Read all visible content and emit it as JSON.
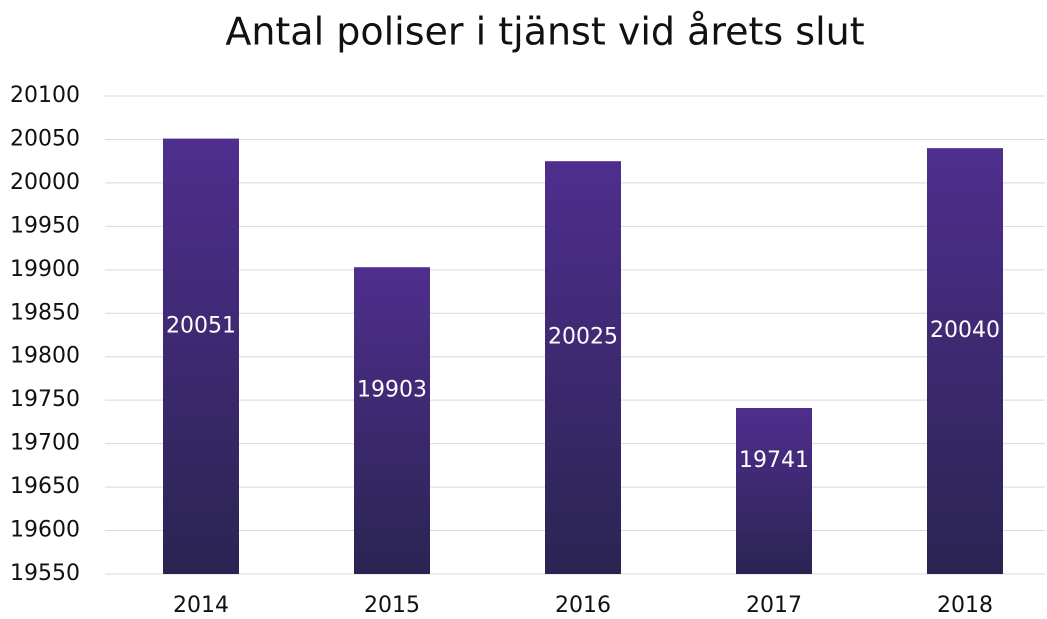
{
  "chart_data": {
    "type": "bar",
    "title": "Antal poliser i tjänst vid årets slut",
    "categories": [
      "2014",
      "2015",
      "2016",
      "2017",
      "2018"
    ],
    "values": [
      20051,
      19903,
      20025,
      19741,
      20040
    ],
    "color_top": "#4f2e8e",
    "color_bottom": "#2a2452",
    "ylim": [
      19550,
      20100
    ],
    "yticks": [
      19550,
      19600,
      19650,
      19700,
      19750,
      19800,
      19850,
      19900,
      19950,
      20000,
      20050,
      20100
    ],
    "grid": true
  }
}
